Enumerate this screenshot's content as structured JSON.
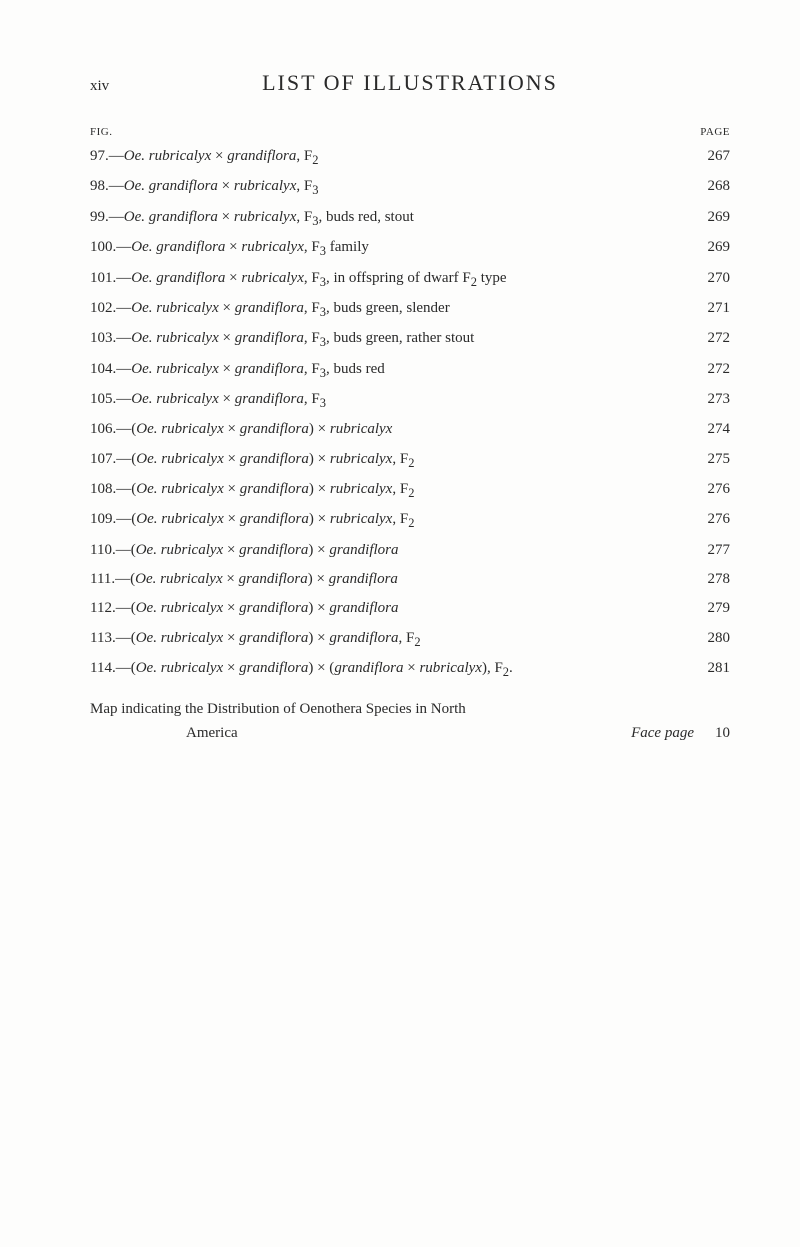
{
  "header": {
    "roman": "xiv",
    "title": "LIST OF ILLUSTRATIONS",
    "left_col": "FIG.",
    "right_col": "PAGE"
  },
  "entries": [
    {
      "n": "97.",
      "pre": "—",
      "sp1": "Oe. rubricalyx",
      "mid1": " × ",
      "sp2": "grandiflora",
      "tail": ", F",
      "sub": "2",
      "page": "267"
    },
    {
      "n": "98.",
      "pre": "—",
      "sp1": "Oe. grandiflora",
      "mid1": " × ",
      "sp2": "rubricalyx",
      "tail": ", F",
      "sub": "3",
      "page": "268"
    },
    {
      "n": "99.",
      "pre": "—",
      "sp1": "Oe. grandiflora",
      "mid1": " × ",
      "sp2": "rubricalyx",
      "tail": ", F",
      "sub": "3",
      "after": ", buds red, stout",
      "page": "269"
    },
    {
      "n": "100.",
      "pre": "—",
      "sp1": "Oe. grandiflora",
      "mid1": " × ",
      "sp2": "rubricalyx",
      "tail": ", F",
      "sub": "3",
      "after": " family",
      "page": "269"
    },
    {
      "n": "101.",
      "pre": "—",
      "sp1": "Oe. grandiflora",
      "mid1": " × ",
      "sp2": "rubricalyx",
      "tail": ", F",
      "sub": "3",
      "after": ", in offspring of dwarf F",
      "sub2": "2",
      "after2": " type",
      "page": "270"
    },
    {
      "n": "102.",
      "pre": "—",
      "sp1": "Oe. rubricalyx",
      "mid1": " × ",
      "sp2": "grandiflora",
      "tail": ", F",
      "sub": "3",
      "after": ", buds green, slender",
      "page": "271"
    },
    {
      "n": "103.",
      "pre": "—",
      "sp1": "Oe. rubricalyx",
      "mid1": " × ",
      "sp2": "grandiflora",
      "tail": ", F",
      "sub": "3",
      "after": ", buds green, rather stout",
      "page": "272"
    },
    {
      "n": "104.",
      "pre": "—",
      "sp1": "Oe. rubricalyx",
      "mid1": " × ",
      "sp2": "grandiflora",
      "tail": ", F",
      "sub": "3",
      "after": ", buds red",
      "page": "272"
    },
    {
      "n": "105.",
      "pre": "—",
      "sp1": "Oe. rubricalyx",
      "mid1": " × ",
      "sp2": "grandiflora",
      "tail": ", F",
      "sub": "3",
      "page": "273"
    },
    {
      "n": "106.",
      "pre": "—(",
      "sp1": "Oe. rubricalyx",
      "mid1": " × ",
      "sp2": "grandiflora",
      "close": ")",
      "mid2": " × ",
      "sp3": "rubricalyx",
      "page": "274"
    },
    {
      "n": "107.",
      "pre": "—(",
      "sp1": "Oe. rubricalyx",
      "mid1": " × ",
      "sp2": "grandiflora",
      "close": ")",
      "mid2": " × ",
      "sp3": "rubricalyx",
      "tail": ", F",
      "sub": "2",
      "page": "275"
    },
    {
      "n": "108.",
      "pre": "—(",
      "sp1": "Oe. rubricalyx",
      "mid1": " × ",
      "sp2": "grandiflora",
      "close": ")",
      "mid2": " × ",
      "sp3": "rubricalyx",
      "tail": ", F",
      "sub": "2",
      "page": "276"
    },
    {
      "n": "109.",
      "pre": "—(",
      "sp1": "Oe. rubricalyx",
      "mid1": " × ",
      "sp2": "grandiflora",
      "close": ")",
      "mid2": " × ",
      "sp3": "rubricalyx",
      "tail": ", F",
      "sub": "2",
      "page": "276"
    },
    {
      "n": "110.",
      "pre": "—(",
      "sp1": "Oe. rubricalyx",
      "mid1": " × ",
      "sp2": "grandiflora",
      "close": ")",
      "mid2": " × ",
      "sp3": "grandiflora",
      "page": "277"
    },
    {
      "n": "111.",
      "pre": "—(",
      "sp1": "Oe. rubricalyx",
      "mid1": " × ",
      "sp2": "grandiflora",
      "close": ")",
      "mid2": " × ",
      "sp3": "grandiflora",
      "page": "278"
    },
    {
      "n": "112.",
      "pre": "—(",
      "sp1": "Oe. rubricalyx",
      "mid1": " × ",
      "sp2": "grandiflora",
      "close": ")",
      "mid2": " × ",
      "sp3": "grandiflora",
      "page": "279"
    },
    {
      "n": "113.",
      "pre": "—(",
      "sp1": "Oe. rubricalyx",
      "mid1": " × ",
      "sp2": "grandiflora",
      "close": ")",
      "mid2": " × ",
      "sp3": "grandiflora",
      "tail": ", F",
      "sub": "2",
      "page": "280"
    },
    {
      "n": "114.",
      "pre": "—(",
      "sp1": "Oe. rubricalyx",
      "mid1": " × ",
      "sp2": "grandiflora",
      "close": ")",
      "mid2": " × (",
      "sp3": "grandiflora",
      "mid3": " × ",
      "sp4": "rubricalyx",
      "close2": "), F",
      "sub": "2",
      "tailPlain": ".",
      "page": "281"
    }
  ],
  "map": {
    "line1": "Map indicating the Distribution of Oenothera Species in North",
    "line2_left": "America",
    "line2_right_italic": "Face page",
    "page": "10"
  }
}
